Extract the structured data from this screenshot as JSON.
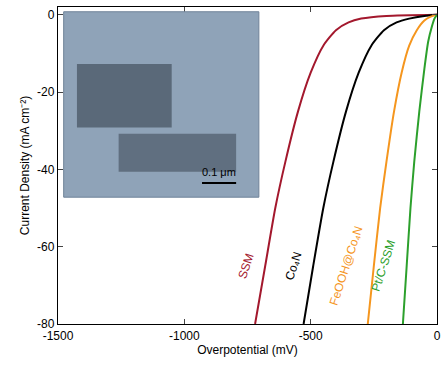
{
  "chart_data": {
    "type": "line",
    "x_label": "Overpotential (mV)",
    "y_label": "Current Density (mA cm⁻²)",
    "xlim": [
      -1500,
      0
    ],
    "ylim": [
      -80,
      2
    ],
    "xticks": [
      -1500,
      -1000,
      -500,
      0
    ],
    "yticks": [
      -80,
      -60,
      -40,
      -20,
      0
    ],
    "grid": false,
    "series": [
      {
        "name": "SSM",
        "color": "#a3182d",
        "x": [
          -720,
          -680,
          -640,
          -600,
          -550,
          -500,
          -450,
          -400,
          -350,
          -300,
          -200,
          0
        ],
        "values": [
          -80,
          -65,
          -50,
          -38,
          -25,
          -15,
          -8,
          -4,
          -2,
          -1,
          -0.3,
          0
        ]
      },
      {
        "name": "Co₄N",
        "color": "#000000",
        "x": [
          -528,
          -490,
          -450,
          -410,
          -360,
          -310,
          -260,
          -210,
          -160,
          -110,
          -50,
          0
        ],
        "values": [
          -80,
          -65,
          -50,
          -38,
          -25,
          -15,
          -8,
          -4,
          -2,
          -1,
          -0.3,
          0
        ]
      },
      {
        "name": "FeOOH@Co₄N",
        "color": "#f5961e",
        "x": [
          -274,
          -250,
          -225,
          -200,
          -170,
          -140,
          -110,
          -80,
          -50,
          -25,
          0
        ],
        "values": [
          -80,
          -65,
          -50,
          -38,
          -25,
          -15,
          -8,
          -4,
          -1.5,
          -0.5,
          0
        ]
      },
      {
        "name": "Pt/C-SSM",
        "color": "#2ca02c",
        "x": [
          -135,
          -120,
          -105,
          -90,
          -70,
          -50,
          -35,
          -20,
          -10,
          0
        ],
        "values": [
          -80,
          -65,
          -50,
          -38,
          -25,
          -14,
          -7,
          -3,
          -1,
          0
        ]
      }
    ],
    "annotations": [
      {
        "text": "0.1 μm"
      }
    ]
  }
}
